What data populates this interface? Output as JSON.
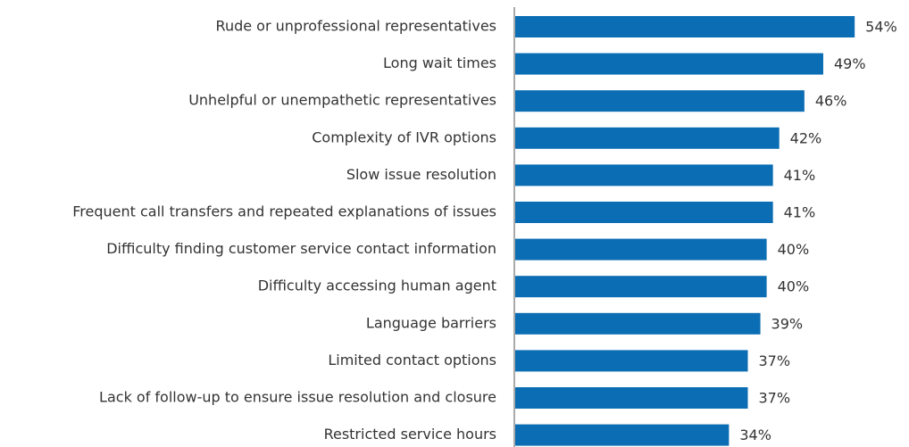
{
  "chart_data": {
    "type": "bar",
    "orientation": "horizontal",
    "color": "#0b6db3",
    "categories": [
      "Rude or unprofessional representatives",
      "Long wait times",
      "Unhelpful or unempathetic representatives",
      "Complexity of IVR options",
      "Slow issue resolution",
      "Frequent call transfers and repeated explanations of issues",
      "Difficulty finding customer service contact information",
      "Difficulty accessing human agent",
      "Language barriers",
      "Limited contact options",
      "Lack of follow-up to ensure issue resolution and closure",
      "Restricted service hours"
    ],
    "values": [
      54,
      49,
      46,
      42,
      41,
      41,
      40,
      40,
      39,
      37,
      37,
      34
    ],
    "value_labels": [
      "54%",
      "49%",
      "46%",
      "42%",
      "41%",
      "41%",
      "40%",
      "40%",
      "39%",
      "37%",
      "37%",
      "34%"
    ]
  }
}
